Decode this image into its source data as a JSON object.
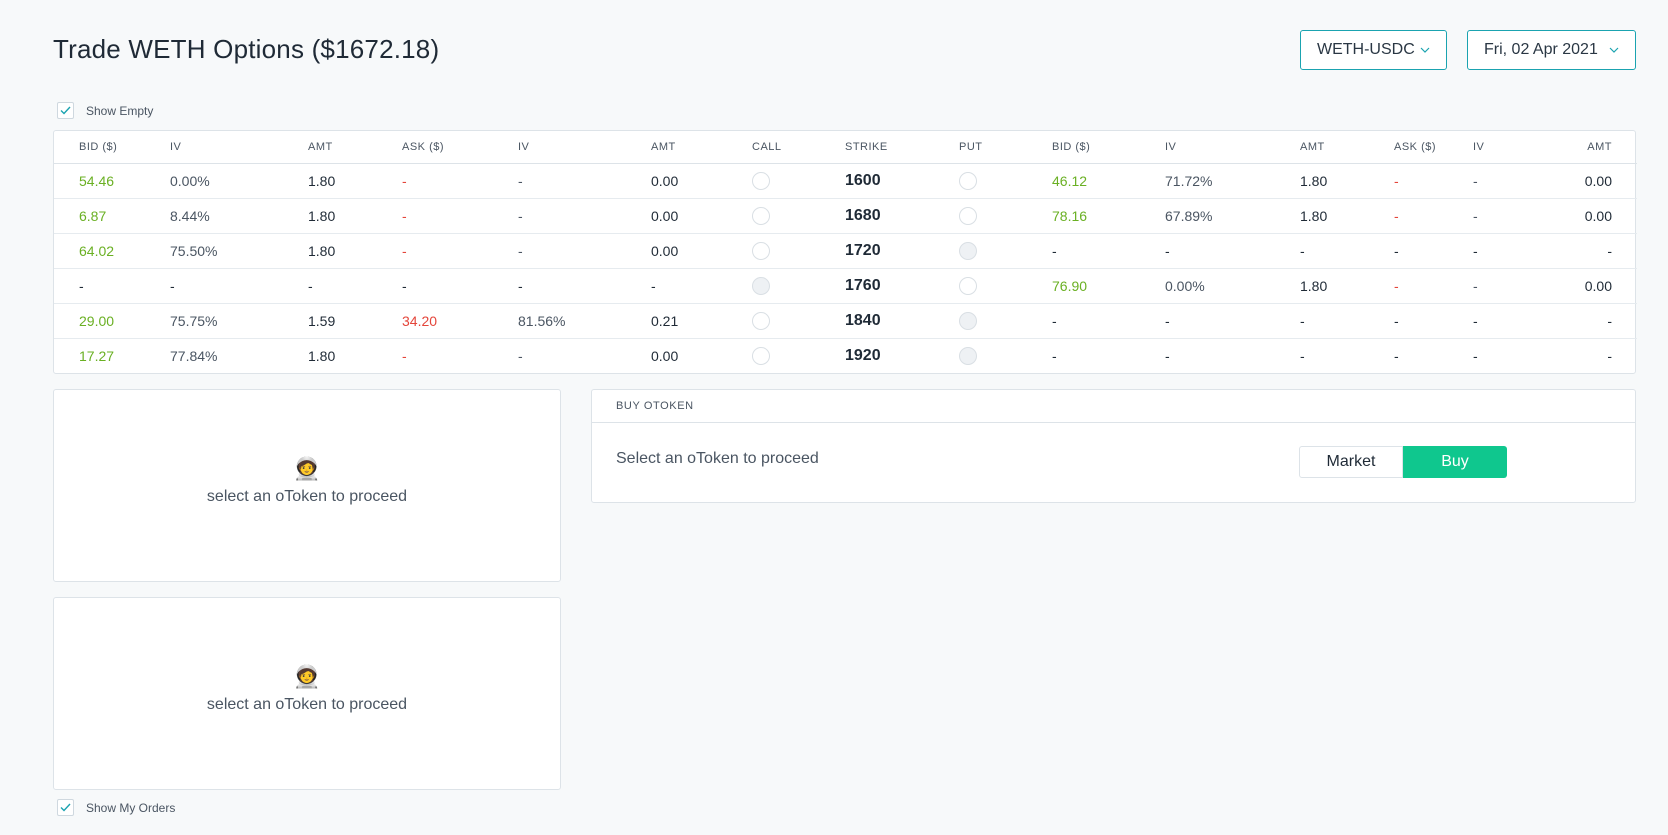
{
  "header": {
    "title": "Trade WETH Options ($1672.18)",
    "pair_select": "WETH-USDC",
    "date_select": "Fri, 02 Apr 2021"
  },
  "show_empty": {
    "label": "Show Empty",
    "checked": true
  },
  "show_my_orders": {
    "label": "Show My Orders",
    "checked": true
  },
  "chain": {
    "headers": [
      "BID ($)",
      "IV",
      "AMT",
      "ASK ($)",
      "IV",
      "AMT",
      "CALL",
      "STRIKE",
      "PUT",
      "BID ($)",
      "IV",
      "AMT",
      "ASK ($)",
      "IV",
      "AMT"
    ],
    "rows": [
      {
        "c_bid": "54.46",
        "c_bid_iv": "0.00%",
        "c_bid_amt": "1.80",
        "c_ask": "-",
        "c_ask_iv": "-",
        "c_ask_amt": "0.00",
        "strike": "1600",
        "p_bid": "46.12",
        "p_bid_iv": "71.72%",
        "p_bid_amt": "1.80",
        "p_ask": "-",
        "p_ask_iv": "-",
        "p_ask_amt": "0.00",
        "call_disabled": false,
        "put_disabled": false
      },
      {
        "c_bid": "6.87",
        "c_bid_iv": "8.44%",
        "c_bid_amt": "1.80",
        "c_ask": "-",
        "c_ask_iv": "-",
        "c_ask_amt": "0.00",
        "strike": "1680",
        "p_bid": "78.16",
        "p_bid_iv": "67.89%",
        "p_bid_amt": "1.80",
        "p_ask": "-",
        "p_ask_iv": "-",
        "p_ask_amt": "0.00",
        "call_disabled": false,
        "put_disabled": false
      },
      {
        "c_bid": "64.02",
        "c_bid_iv": "75.50%",
        "c_bid_amt": "1.80",
        "c_ask": "-",
        "c_ask_iv": "-",
        "c_ask_amt": "0.00",
        "strike": "1720",
        "p_bid": "-",
        "p_bid_iv": "-",
        "p_bid_amt": "-",
        "p_ask": "-",
        "p_ask_iv": "-",
        "p_ask_amt": "-",
        "call_disabled": false,
        "put_disabled": true
      },
      {
        "c_bid": "-",
        "c_bid_iv": "-",
        "c_bid_amt": "-",
        "c_ask": "-",
        "c_ask_iv": "-",
        "c_ask_amt": "-",
        "strike": "1760",
        "p_bid": "76.90",
        "p_bid_iv": "0.00%",
        "p_bid_amt": "1.80",
        "p_ask": "-",
        "p_ask_iv": "-",
        "p_ask_amt": "0.00",
        "call_disabled": true,
        "put_disabled": false
      },
      {
        "c_bid": "29.00",
        "c_bid_iv": "75.75%",
        "c_bid_amt": "1.59",
        "c_ask": "34.20",
        "c_ask_iv": "81.56%",
        "c_ask_amt": "0.21",
        "strike": "1840",
        "p_bid": "-",
        "p_bid_iv": "-",
        "p_bid_amt": "-",
        "p_ask": "-",
        "p_ask_iv": "-",
        "p_ask_amt": "-",
        "call_disabled": false,
        "put_disabled": true
      },
      {
        "c_bid": "17.27",
        "c_bid_iv": "77.84%",
        "c_bid_amt": "1.80",
        "c_ask": "-",
        "c_ask_iv": "-",
        "c_ask_amt": "0.00",
        "strike": "1920",
        "p_bid": "-",
        "p_bid_iv": "-",
        "p_bid_amt": "-",
        "p_ask": "-",
        "p_ask_iv": "-",
        "p_ask_amt": "-",
        "call_disabled": false,
        "put_disabled": true
      }
    ]
  },
  "empty_panels": [
    {
      "icon": "astronaut-icon",
      "emoji": "🧑‍🚀",
      "text": "select an oToken to proceed"
    },
    {
      "icon": "astronaut-icon",
      "emoji": "🧑‍🚀",
      "text": "select an oToken to proceed"
    }
  ],
  "buy_panel": {
    "header": "BUY OTOKEN",
    "message": "Select an oToken to proceed",
    "market_label": "Market",
    "buy_label": "Buy"
  },
  "colors": {
    "accent": "#1aa3b0",
    "buy": "#0fc78e",
    "bid": "#6ab023",
    "ask": "#e4453a"
  }
}
